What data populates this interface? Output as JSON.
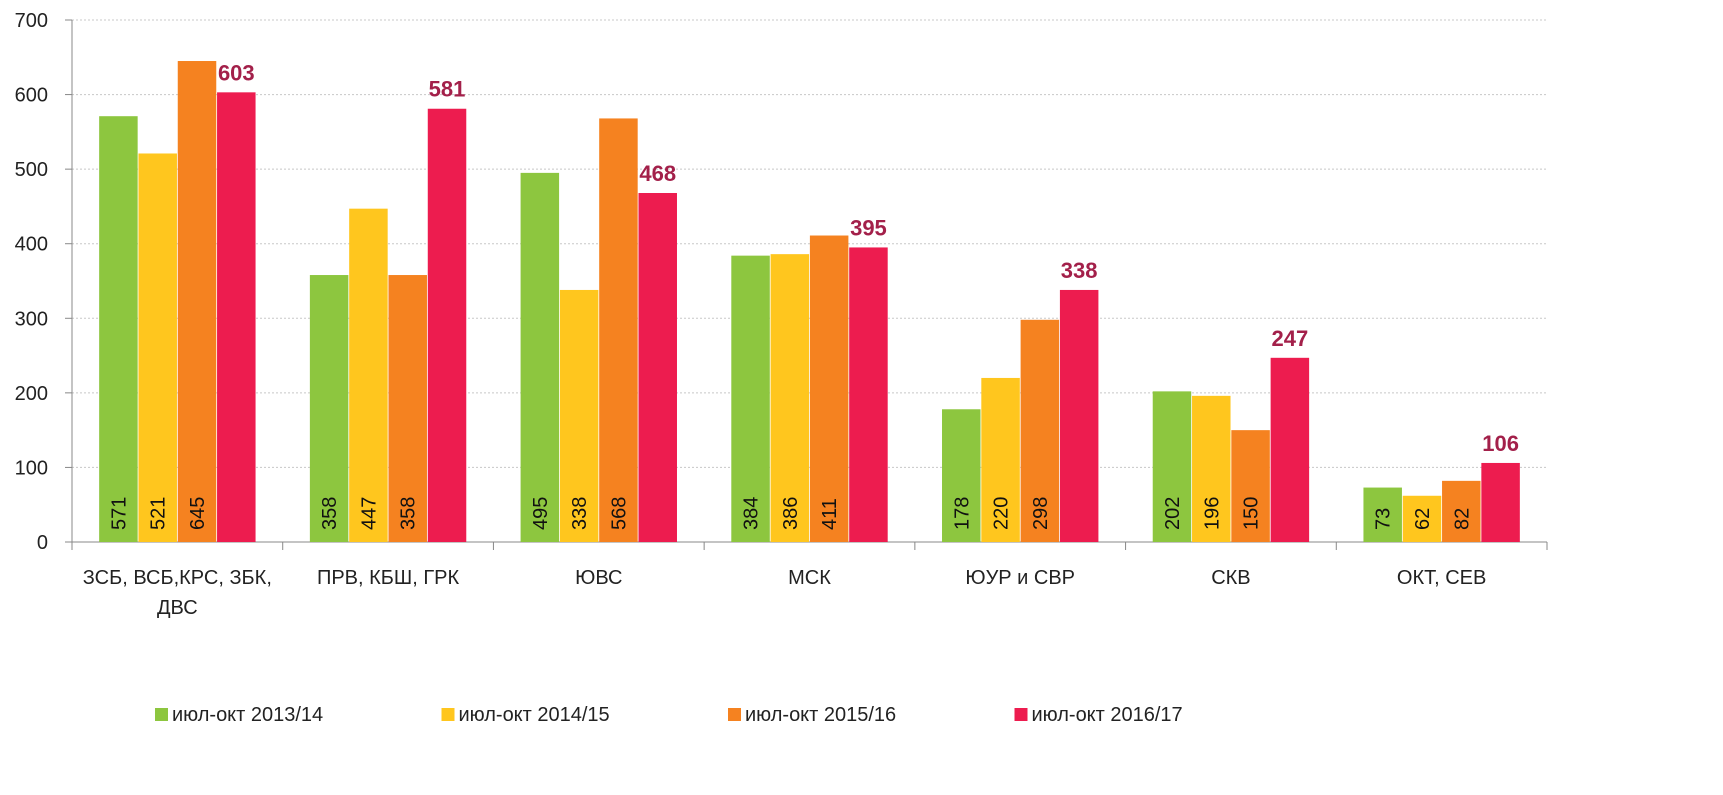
{
  "chart_data": {
    "type": "bar",
    "categories": [
      "ЗСБ, ВСБ,КРС, ЗБК, ДВС",
      "ПРВ, КБШ, ГРК",
      "ЮВС",
      "МСК",
      "ЮУР и СВР",
      "СКВ",
      "ОКТ, СЕВ"
    ],
    "series": [
      {
        "name": "июл-окт 2013/14",
        "color": "#8dc63f",
        "label_position": "inside",
        "values": [
          571,
          358,
          495,
          384,
          178,
          202,
          73
        ]
      },
      {
        "name": "июл-окт 2014/15",
        "color": "#ffc61e",
        "label_position": "inside",
        "values": [
          521,
          447,
          338,
          386,
          220,
          196,
          62
        ]
      },
      {
        "name": "июл-окт 2015/16",
        "color": "#f58220",
        "label_position": "inside",
        "values": [
          645,
          358,
          568,
          411,
          298,
          150,
          82
        ]
      },
      {
        "name": "июл-окт 2016/17",
        "color": "#ed1c4f",
        "label_position": "outside",
        "label_color": "#a3204a",
        "values": [
          603,
          581,
          468,
          395,
          338,
          247,
          106
        ]
      }
    ],
    "ylim": [
      0,
      700
    ],
    "yticks": [
      0,
      100,
      200,
      300,
      400,
      500,
      600,
      700
    ],
    "grid": true,
    "legend": "bottom"
  }
}
